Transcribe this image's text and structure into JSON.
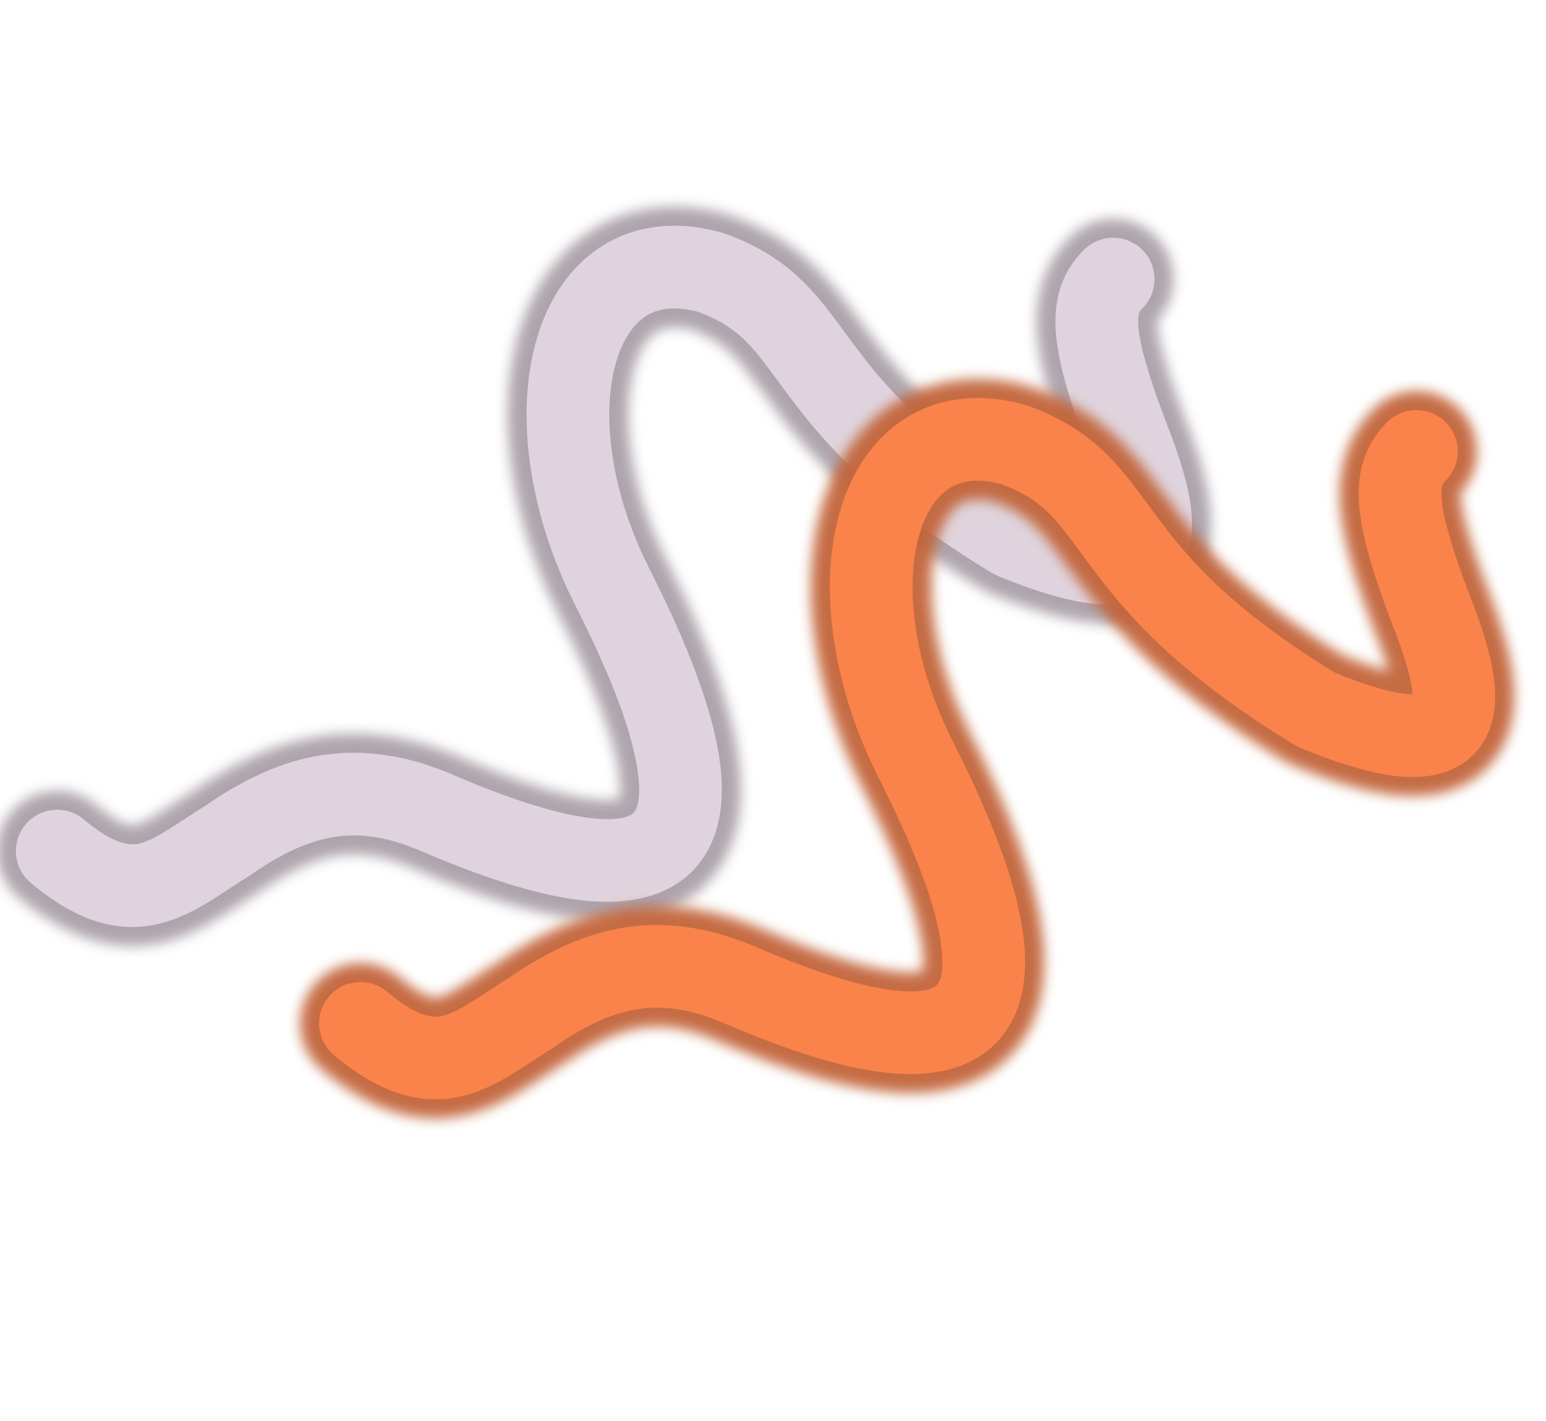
{
  "artwork": {
    "background_color": "#ffffff",
    "shapes": [
      {
        "name": "lavender-squiggle",
        "main_color": "#dfd4dd",
        "shadow_color": "#aaa0a9"
      },
      {
        "name": "orange-squiggle",
        "main_color": "#fa834b",
        "shadow_color": "#c2653a"
      }
    ]
  }
}
